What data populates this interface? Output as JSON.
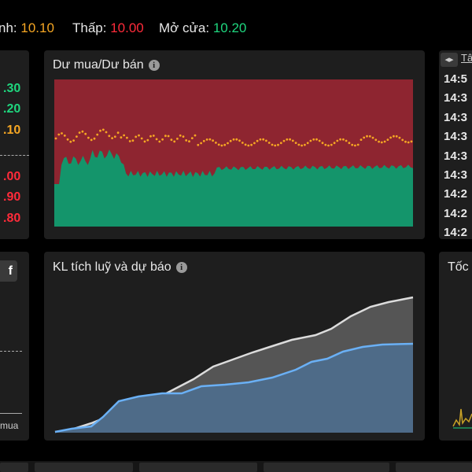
{
  "header": {
    "high_label": "nh:",
    "high_value": "10.10",
    "low_label": "Thấp:",
    "low_value": "10.00",
    "open_label": "Mở cửa:",
    "open_value": "10.20"
  },
  "price_ladder": [
    {
      "text": ".30",
      "color": "#1fd67e"
    },
    {
      "text": ".20",
      "color": "#1fd67e"
    },
    {
      "text": ".10",
      "color": "#f5a623"
    },
    {
      "text": ".00",
      "color": "#ff2b3a"
    },
    {
      "text": ".90",
      "color": "#ff2b3a"
    },
    {
      "text": ".80",
      "color": "#ff2b3a"
    }
  ],
  "bid_ask_panel": {
    "title": "Dư mua/Dư bán",
    "info_icon": "i"
  },
  "cumulative_panel": {
    "title": "KL tích luỹ và dự báo",
    "info_icon": "i"
  },
  "left_lower_panel": {
    "button_fragment": "f",
    "label_fragment": "mua"
  },
  "time_panel": {
    "tab_fragment": "Tâ",
    "times": [
      "14:5",
      "14:3",
      "14:3",
      "14:3",
      "14:3",
      "14:3",
      "14:2",
      "14:2",
      "14:2"
    ]
  },
  "speed_panel": {
    "title_fragment": "Tốc"
  },
  "colors": {
    "ask_red": "#8e2530",
    "bid_green": "#14956b",
    "dots_orange": "#f5a623",
    "forecast_gray": "#dcdcdc",
    "actual_blue": "#6ab0f5",
    "panel_bg": "#1e1e1e"
  }
}
